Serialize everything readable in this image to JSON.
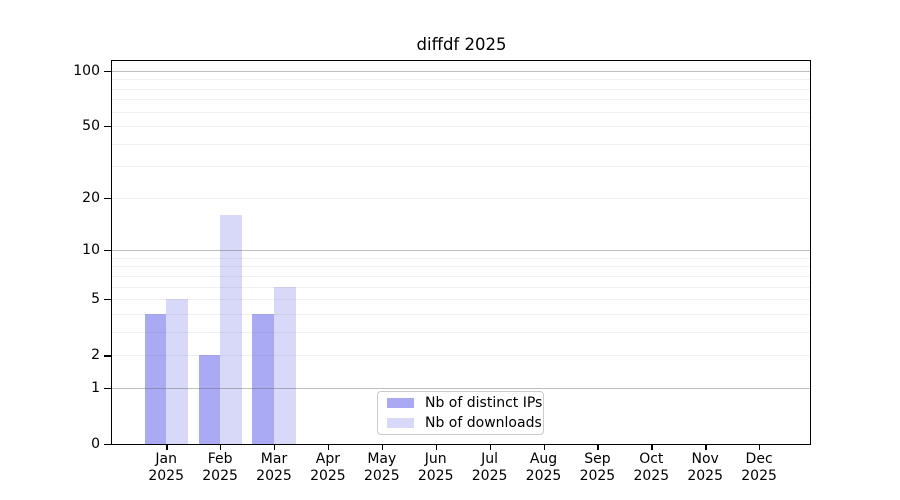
{
  "title": "diffdf 2025",
  "colors": {
    "background": "#ffffff",
    "spine": "#000000",
    "grid_major": "#c6c6c6",
    "grid_minor": "#ededed",
    "legend_border": "#cccccc",
    "bar_ips": "#a9a9f4",
    "bar_downloads": "#d8d8f9"
  },
  "chart_data": {
    "type": "bar",
    "title": "diffdf 2025",
    "year": "2025",
    "months": [
      "Jan",
      "Feb",
      "Mar",
      "Apr",
      "May",
      "Jun",
      "Jul",
      "Aug",
      "Sep",
      "Oct",
      "Nov",
      "Dec"
    ],
    "categories": [
      "Jan 2025",
      "Feb 2025",
      "Mar 2025",
      "Apr 2025",
      "May 2025",
      "Jun 2025",
      "Jul 2025",
      "Aug 2025",
      "Sep 2025",
      "Oct 2025",
      "Nov 2025",
      "Dec 2025"
    ],
    "series": [
      {
        "name": "Nb of distinct IPs",
        "color": "#a9a9f4",
        "values": [
          4,
          2,
          4,
          0,
          0,
          0,
          0,
          0,
          0,
          0,
          0,
          0
        ]
      },
      {
        "name": "Nb of downloads",
        "color": "#d8d8f9",
        "values": [
          5,
          16,
          6,
          0,
          0,
          0,
          0,
          0,
          0,
          0,
          0,
          0
        ]
      }
    ],
    "xlabel": "",
    "ylabel": "",
    "y_scale": "log1p",
    "ylim": [
      0,
      113
    ],
    "y_ticks": [
      0,
      1,
      2,
      5,
      10,
      20,
      50,
      100
    ],
    "grid": {
      "on": true,
      "major": [
        1,
        10,
        100
      ],
      "minor": [
        2,
        3,
        4,
        5,
        6,
        7,
        8,
        9,
        20,
        30,
        40,
        50,
        60,
        70,
        80,
        90
      ]
    },
    "legend": {
      "position": "lower center",
      "labels": [
        "Nb of distinct IPs",
        "Nb of downloads"
      ]
    }
  }
}
